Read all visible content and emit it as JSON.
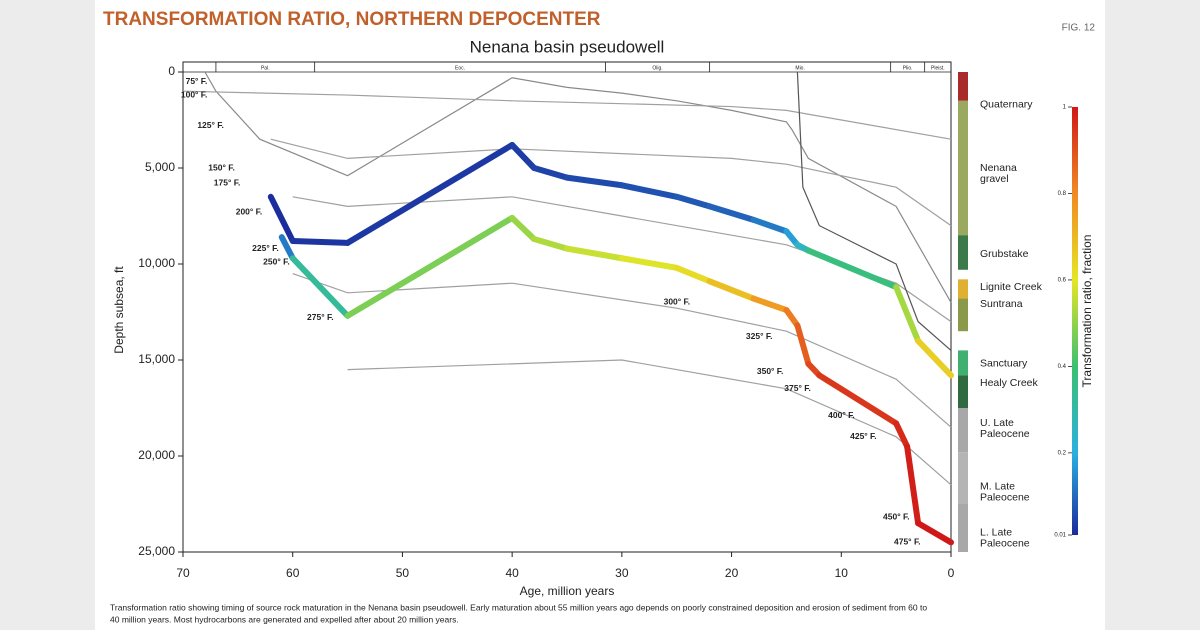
{
  "header": {
    "title": "TRANSFORMATION RATIO, NORTHERN DEPOCENTER",
    "figure": "FIG. 12"
  },
  "caption": [
    "Transformation ratio showing timing of source rock maturation in the Nenana basin pseudowell. Early maturation about 55 million years ago depends on poorly constrained deposition and erosion of sediment from 60 to",
    "40 million years. Most hydrocarbons are generated and expelled after about 20 million years."
  ],
  "chart_data": {
    "type": "line",
    "title": "Nenana basin pseudowell",
    "x_label": "Age, million years",
    "y_label": "Depth subsea, ft",
    "xlim": [
      70,
      0
    ],
    "xticks": [
      70,
      60,
      50,
      40,
      30,
      20,
      10,
      0
    ],
    "ylim": [
      0,
      25000
    ],
    "y_inverted": true,
    "yticks": [
      0,
      {
        "value": 5000,
        "label": "5,000"
      },
      {
        "value": 10000,
        "label": "10,000"
      },
      {
        "value": 15000,
        "label": "15,000"
      },
      {
        "value": 20000,
        "label": "20,000"
      },
      {
        "value": 25000,
        "label": "25,000"
      }
    ],
    "epochs": [
      {
        "label": "Pal.",
        "from": 67,
        "to": 58
      },
      {
        "label": "Eoc.",
        "from": 58,
        "to": 31.5
      },
      {
        "label": "Olig.",
        "from": 31.5,
        "to": 22
      },
      {
        "label": "Mio.",
        "from": 22,
        "to": 5.5
      },
      {
        "label": "Plio.",
        "from": 5.5,
        "to": 2.4
      },
      {
        "label": "Pleist.",
        "from": 2.4,
        "to": 0
      }
    ],
    "series": [
      {
        "color": "#8a8a8a",
        "x": [
          68,
          67,
          63,
          55,
          40,
          35,
          30,
          25,
          20,
          15,
          14.5,
          13,
          5,
          3,
          0
        ],
        "values": [
          0,
          1000,
          3500,
          5400,
          300,
          800,
          1100,
          1500,
          2000,
          2600,
          3000,
          4500,
          7000,
          9000,
          12000
        ]
      },
      {
        "color": "#a0a0a0",
        "x": [
          70,
          55,
          40,
          20,
          15,
          0
        ],
        "values": [
          1000,
          1200,
          1500,
          1800,
          2000,
          3500
        ]
      },
      {
        "color": "#a0a0a0",
        "x": [
          62,
          55,
          40,
          20,
          15,
          5,
          0
        ],
        "values": [
          3500,
          4500,
          4000,
          4500,
          4800,
          6000,
          8000
        ]
      },
      {
        "color": "#a0a0a0",
        "x": [
          60,
          55,
          40,
          30,
          20,
          15,
          5,
          0
        ],
        "values": [
          6500,
          7000,
          6500,
          7500,
          8500,
          9000,
          11000,
          13000
        ]
      },
      {
        "color": "#a0a0a0",
        "x": [
          60,
          55,
          40,
          25,
          15,
          5,
          0
        ],
        "values": [
          10500,
          11500,
          11000,
          12300,
          13500,
          16000,
          18500
        ]
      },
      {
        "color": "#a0a0a0",
        "x": [
          55,
          30,
          15,
          5,
          0
        ],
        "values": [
          15500,
          15000,
          16500,
          19000,
          21500
        ]
      },
      {
        "color": "#555555",
        "x": [
          14,
          13.5,
          12,
          5,
          3,
          0
        ],
        "values": [
          0,
          6000,
          8000,
          10000,
          13000,
          14500
        ]
      },
      {
        "x": [
          62,
          60,
          55,
          40,
          38,
          35,
          30,
          25,
          22,
          18,
          15,
          14,
          13,
          5,
          3,
          0
        ],
        "values": [
          6500,
          8800,
          8900,
          3800,
          5000,
          5500,
          5900,
          6500,
          7000,
          7700,
          8300,
          9000,
          9300,
          11200,
          14000,
          15800
        ],
        "transformation_ratio": [
          0.01,
          0.02,
          0.03,
          0.03,
          0.04,
          0.05,
          0.06,
          0.07,
          0.08,
          0.1,
          0.15,
          0.2,
          0.3,
          0.45,
          0.6,
          0.7
        ]
      },
      {
        "x": [
          61,
          60,
          55,
          40,
          38,
          35,
          30,
          25,
          22,
          18,
          15,
          14,
          13,
          12,
          5,
          4,
          3,
          0
        ],
        "values": [
          8600,
          9700,
          12700,
          7600,
          8700,
          9200,
          9700,
          10200,
          10900,
          11800,
          12400,
          13200,
          15200,
          15800,
          18300,
          19500,
          23500,
          24500
        ],
        "transformation_ratio": [
          0.05,
          0.2,
          0.45,
          0.5,
          0.52,
          0.55,
          0.58,
          0.6,
          0.65,
          0.72,
          0.8,
          0.85,
          0.9,
          0.93,
          0.96,
          0.98,
          1,
          1
        ]
      }
    ],
    "annotations": [
      {
        "text": "75° F.",
        "x": 67.5,
        "y": 500
      },
      {
        "text": "100° F.",
        "x": 67.5,
        "y": 1200
      },
      {
        "text": "125° F.",
        "x": 66,
        "y": 2800
      },
      {
        "text": "150° F.",
        "x": 65,
        "y": 5000
      },
      {
        "text": "175° F.",
        "x": 64.5,
        "y": 5800
      },
      {
        "text": "200° F.",
        "x": 62.5,
        "y": 7300
      },
      {
        "text": "225° F.",
        "x": 61,
        "y": 9200
      },
      {
        "text": "250° F.",
        "x": 60,
        "y": 9900
      },
      {
        "text": "275° F.",
        "x": 56,
        "y": 12800
      },
      {
        "text": "300° F.",
        "x": 23.5,
        "y": 12000
      },
      {
        "text": "325° F.",
        "x": 16,
        "y": 13800
      },
      {
        "text": "350° F.",
        "x": 15,
        "y": 15600
      },
      {
        "text": "375° F.",
        "x": 12.5,
        "y": 16500
      },
      {
        "text": "400° F.",
        "x": 8.5,
        "y": 17900
      },
      {
        "text": "425° F.",
        "x": 6.5,
        "y": 19000
      },
      {
        "text": "450° F.",
        "x": 3.5,
        "y": 23200
      },
      {
        "text": "475° F.",
        "x": 2.5,
        "y": 24500
      }
    ],
    "formations": [
      {
        "label": [
          "Quaternary"
        ],
        "top": 0,
        "bottom": 1500,
        "label_depth": 1700,
        "color": "#a82a2a"
      },
      {
        "label": [
          "Nenana",
          "gravel"
        ],
        "top": 1500,
        "bottom": 8500,
        "label_depth": 5000,
        "color": "#9aa860"
      },
      {
        "label": [
          "Grubstake"
        ],
        "top": 8500,
        "bottom": 10300,
        "label_depth": 9500,
        "color": "#3c7a4a"
      },
      {
        "label": [
          "Lignite Creek"
        ],
        "top": 10800,
        "bottom": 11800,
        "label_depth": 11200,
        "color": "#e0b030"
      },
      {
        "label": [
          "Suntrana"
        ],
        "top": 11800,
        "bottom": 13500,
        "label_depth": 12100,
        "color": "#8a9a4a"
      },
      {
        "label": [
          "Sanctuary"
        ],
        "top": 14500,
        "bottom": 15800,
        "label_depth": 15200,
        "color": "#40b070"
      },
      {
        "label": [
          "Healy Creek"
        ],
        "top": 15800,
        "bottom": 17500,
        "label_depth": 16200,
        "color": "#2f6a40"
      },
      {
        "label": [
          "U. Late",
          "Paleocene"
        ],
        "top": 17500,
        "bottom": 19800,
        "label_depth": 18300,
        "color": "#a8a8a8"
      },
      {
        "label": [
          "M. Late",
          "Paleocene"
        ],
        "top": 19800,
        "bottom": 22500,
        "label_depth": 21600,
        "color": "#b4b4b4"
      },
      {
        "label": [
          "L. Late",
          "Paleocene"
        ],
        "top": 22500,
        "bottom": 25000,
        "label_depth": 24000,
        "color": "#a8a8a8"
      }
    ],
    "colorbar": {
      "label": "Transformation ratio, fraction",
      "clim": [
        0.01,
        1
      ],
      "ticks": [
        1,
        {
          "value": 0.8,
          "label": "0.8"
        },
        {
          "value": 0.6,
          "label": "0.6"
        },
        {
          "value": 0.4,
          "label": "0.4"
        },
        {
          "value": 0.2,
          "label": "0.2"
        },
        0.01
      ],
      "colorscale": [
        [
          0.01,
          "#1c2a9c"
        ],
        [
          0.2,
          "#2ab0e0"
        ],
        [
          0.4,
          "#3cc070"
        ],
        [
          0.6,
          "#e6e626"
        ],
        [
          0.8,
          "#f08a22"
        ],
        [
          1,
          "#d01818"
        ]
      ]
    }
  }
}
